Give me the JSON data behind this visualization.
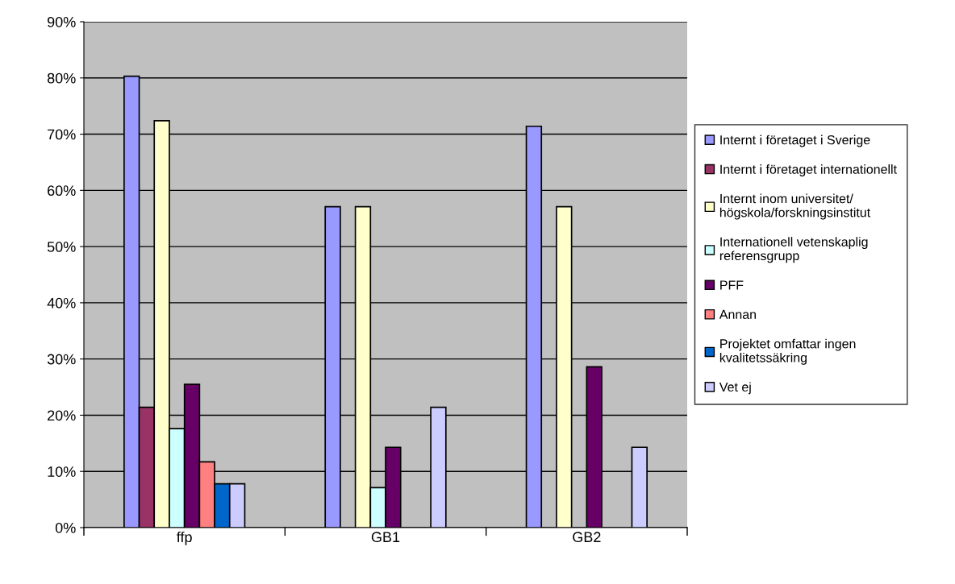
{
  "chart_data": {
    "type": "bar",
    "categories": [
      "ffp",
      "GB1",
      "GB2"
    ],
    "series": [
      {
        "name": "Internt i företaget i Sverige",
        "color": "#9999ff",
        "values": [
          80.3,
          57.1,
          71.4
        ]
      },
      {
        "name": "Internt i företaget internationellt",
        "color": "#993366",
        "values": [
          21.4,
          null,
          null
        ]
      },
      {
        "name": "Internt inom universitet/\nhögskola/forskningsinstitut",
        "color": "#ffffcc",
        "values": [
          72.4,
          57.1,
          57.1
        ]
      },
      {
        "name": "Internationell vetenskaplig\nreferensgrupp",
        "color": "#ccffff",
        "values": [
          17.6,
          7.1,
          null
        ]
      },
      {
        "name": "PFF",
        "color": "#660066",
        "values": [
          25.5,
          14.3,
          28.6
        ]
      },
      {
        "name": "Annan",
        "color": "#ff8080",
        "values": [
          11.7,
          null,
          null
        ]
      },
      {
        "name": "Projektet omfattar ingen\nkvalitetssäkring",
        "color": "#0066cc",
        "values": [
          7.8,
          null,
          null
        ]
      },
      {
        "name": "Vet ej",
        "color": "#ccccff",
        "values": [
          7.8,
          21.4,
          14.3
        ]
      }
    ],
    "ylim": [
      0,
      90
    ],
    "yticks": [
      {
        "value": 0,
        "label": "0%"
      },
      {
        "value": 10,
        "label": "10%"
      },
      {
        "value": 20,
        "label": "20%"
      },
      {
        "value": 30,
        "label": "30%"
      },
      {
        "value": 40,
        "label": "40%"
      },
      {
        "value": 50,
        "label": "50%"
      },
      {
        "value": 60,
        "label": "60%"
      },
      {
        "value": 70,
        "label": "70%"
      },
      {
        "value": 80,
        "label": "80%"
      },
      {
        "value": 90,
        "label": "90%"
      }
    ],
    "grid": "y",
    "legend": "right"
  }
}
